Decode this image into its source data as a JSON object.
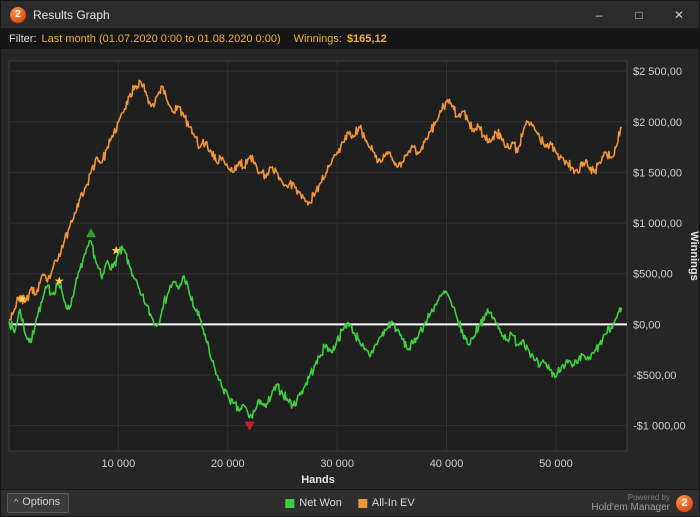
{
  "window": {
    "title": "Results Graph",
    "logo_text": "2",
    "controls": {
      "minimize": "–",
      "maximize": "□",
      "close": "✕"
    }
  },
  "filter_bar": {
    "label": "Filter:",
    "filter_text": "Last month (01.07.2020 0:00 to 01.08.2020 0:00)",
    "winnings_label": "Winnings:",
    "winnings_value": "$165,12"
  },
  "legend": [
    {
      "label": "Net Won",
      "color": "#3ecf3e"
    },
    {
      "label": "All-In EV",
      "color": "#ef9438"
    }
  ],
  "footer": {
    "options_caret": "^",
    "options_label": "Options",
    "powered_by": "Powered by",
    "brand": "Hold'em Manager",
    "brand_logo_text": "2"
  },
  "chart_data": {
    "type": "line",
    "title": "",
    "xlabel": "Hands",
    "ylabel": "Winnings",
    "xlim": [
      0,
      56500
    ],
    "ylim": [
      -1250,
      2600
    ],
    "grid": true,
    "legend_position": "bottom",
    "plot_background": "#1f1f1f",
    "grid_color": "#323232",
    "border_color": "#3c3c3c",
    "tick_color": "#cfcfcf",
    "axis_title_color": "#e6e6e6",
    "zero_line": {
      "value": 0,
      "color": "#ffffff"
    },
    "x_ticks": [
      {
        "value": 10000,
        "label": "10 000"
      },
      {
        "value": 20000,
        "label": "20 000"
      },
      {
        "value": 30000,
        "label": "30 000"
      },
      {
        "value": 40000,
        "label": "40 000"
      },
      {
        "value": 50000,
        "label": "50 000"
      }
    ],
    "y_ticks": [
      {
        "value": 2500,
        "label": "$2 500,00"
      },
      {
        "value": 2000,
        "label": "$2 000,00"
      },
      {
        "value": 1500,
        "label": "$1 500,00"
      },
      {
        "value": 1000,
        "label": "$1 000,00"
      },
      {
        "value": 500,
        "label": "$500,00"
      },
      {
        "value": 0,
        "label": "$0,00"
      },
      {
        "value": -500,
        "label": "-$500,00"
      },
      {
        "value": -1000,
        "label": "-$1 000,00"
      }
    ],
    "x_start": 0,
    "x_step": 500,
    "noise": {
      "amplitude": 55,
      "subdivisions": 6
    },
    "series": [
      {
        "name": "Net Won",
        "color": "#3ecf3e",
        "seed": 7,
        "values": [
          30,
          -80,
          150,
          -100,
          -180,
          60,
          220,
          380,
          300,
          420,
          250,
          150,
          350,
          550,
          700,
          820,
          600,
          450,
          630,
          560,
          700,
          740,
          580,
          450,
          300,
          200,
          80,
          -20,
          150,
          300,
          420,
          350,
          480,
          300,
          150,
          50,
          -150,
          -350,
          -500,
          -620,
          -700,
          -780,
          -850,
          -800,
          -920,
          -850,
          -750,
          -820,
          -700,
          -600,
          -680,
          -750,
          -800,
          -700,
          -620,
          -500,
          -400,
          -300,
          -200,
          -280,
          -150,
          -60,
          20,
          -80,
          -150,
          -250,
          -320,
          -200,
          -120,
          -50,
          30,
          -60,
          -150,
          -250,
          -180,
          -80,
          0,
          100,
          200,
          280,
          320,
          180,
          50,
          -100,
          -200,
          -120,
          0,
          80,
          120,
          20,
          -80,
          -150,
          -100,
          -200,
          -150,
          -250,
          -350,
          -420,
          -380,
          -450,
          -520,
          -420,
          -350,
          -420,
          -380,
          -300,
          -350,
          -280,
          -200,
          -100,
          -50,
          60,
          165
        ]
      },
      {
        "name": "All-In EV",
        "color": "#ef9438",
        "seed": 23,
        "values": [
          50,
          150,
          280,
          220,
          350,
          300,
          480,
          420,
          550,
          650,
          800,
          950,
          1100,
          1250,
          1350,
          1500,
          1650,
          1600,
          1750,
          1850,
          2000,
          2100,
          2250,
          2350,
          2400,
          2300,
          2150,
          2250,
          2350,
          2200,
          2100,
          2150,
          2050,
          1950,
          1850,
          1750,
          1800,
          1700,
          1600,
          1650,
          1550,
          1500,
          1600,
          1550,
          1650,
          1600,
          1500,
          1450,
          1550,
          1500,
          1400,
          1350,
          1400,
          1300,
          1250,
          1200,
          1300,
          1400,
          1500,
          1600,
          1700,
          1800,
          1900,
          1850,
          1950,
          1850,
          1750,
          1650,
          1600,
          1700,
          1650,
          1550,
          1600,
          1700,
          1750,
          1700,
          1800,
          1900,
          2000,
          2100,
          2200,
          2150,
          2050,
          2100,
          2000,
          1900,
          1950,
          1850,
          1800,
          1900,
          1850,
          1750,
          1800,
          1700,
          1900,
          2000,
          1950,
          1850,
          1750,
          1800,
          1700,
          1650,
          1600,
          1550,
          1500,
          1600,
          1550,
          1500,
          1600,
          1700,
          1650,
          1750,
          1950
        ]
      }
    ],
    "markers": [
      {
        "type": "star",
        "x": 1200,
        "y": 250,
        "color": "#ffd24a"
      },
      {
        "type": "star",
        "x": 4600,
        "y": 430,
        "color": "#ffd24a"
      },
      {
        "type": "star",
        "x": 9800,
        "y": 730,
        "color": "#ffd24a"
      },
      {
        "type": "triangle-up",
        "x": 7500,
        "y": 900,
        "color": "#2e9e2e"
      },
      {
        "type": "triangle-down",
        "x": 22000,
        "y": -1000,
        "color": "#cc2020"
      }
    ]
  }
}
